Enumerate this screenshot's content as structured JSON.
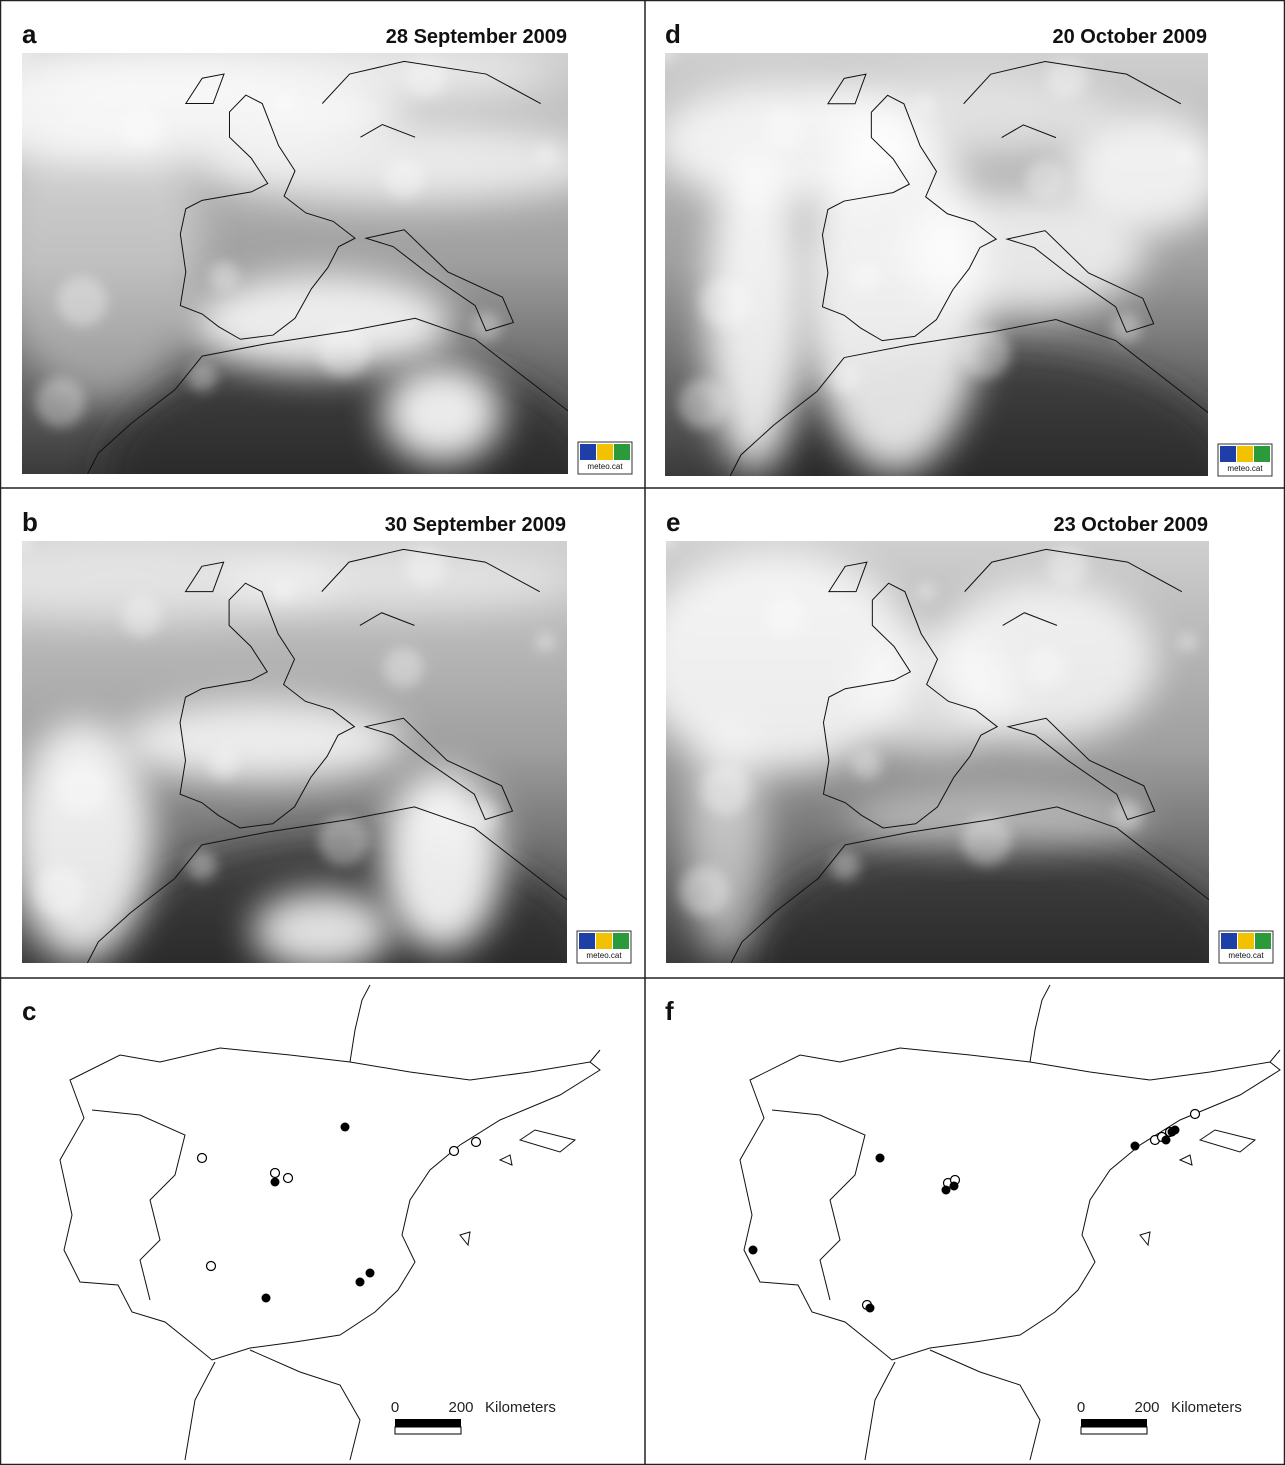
{
  "panels": [
    {
      "letter": "a",
      "date": "28 September 2009",
      "logo": "meteo.cat"
    },
    {
      "letter": "b",
      "date": "30 September 2009",
      "logo": "meteo.cat"
    },
    {
      "letter": "d",
      "date": "20 October 2009",
      "logo": "meteo.cat"
    },
    {
      "letter": "e",
      "date": "23 October 2009",
      "logo": "meteo.cat"
    }
  ],
  "maps": [
    {
      "letter": "c",
      "scale": {
        "start": "0",
        "end": "200",
        "unit": "Kilometers"
      }
    },
    {
      "letter": "f",
      "scale": {
        "start": "0",
        "end": "200",
        "unit": "Kilometers"
      }
    }
  ]
}
